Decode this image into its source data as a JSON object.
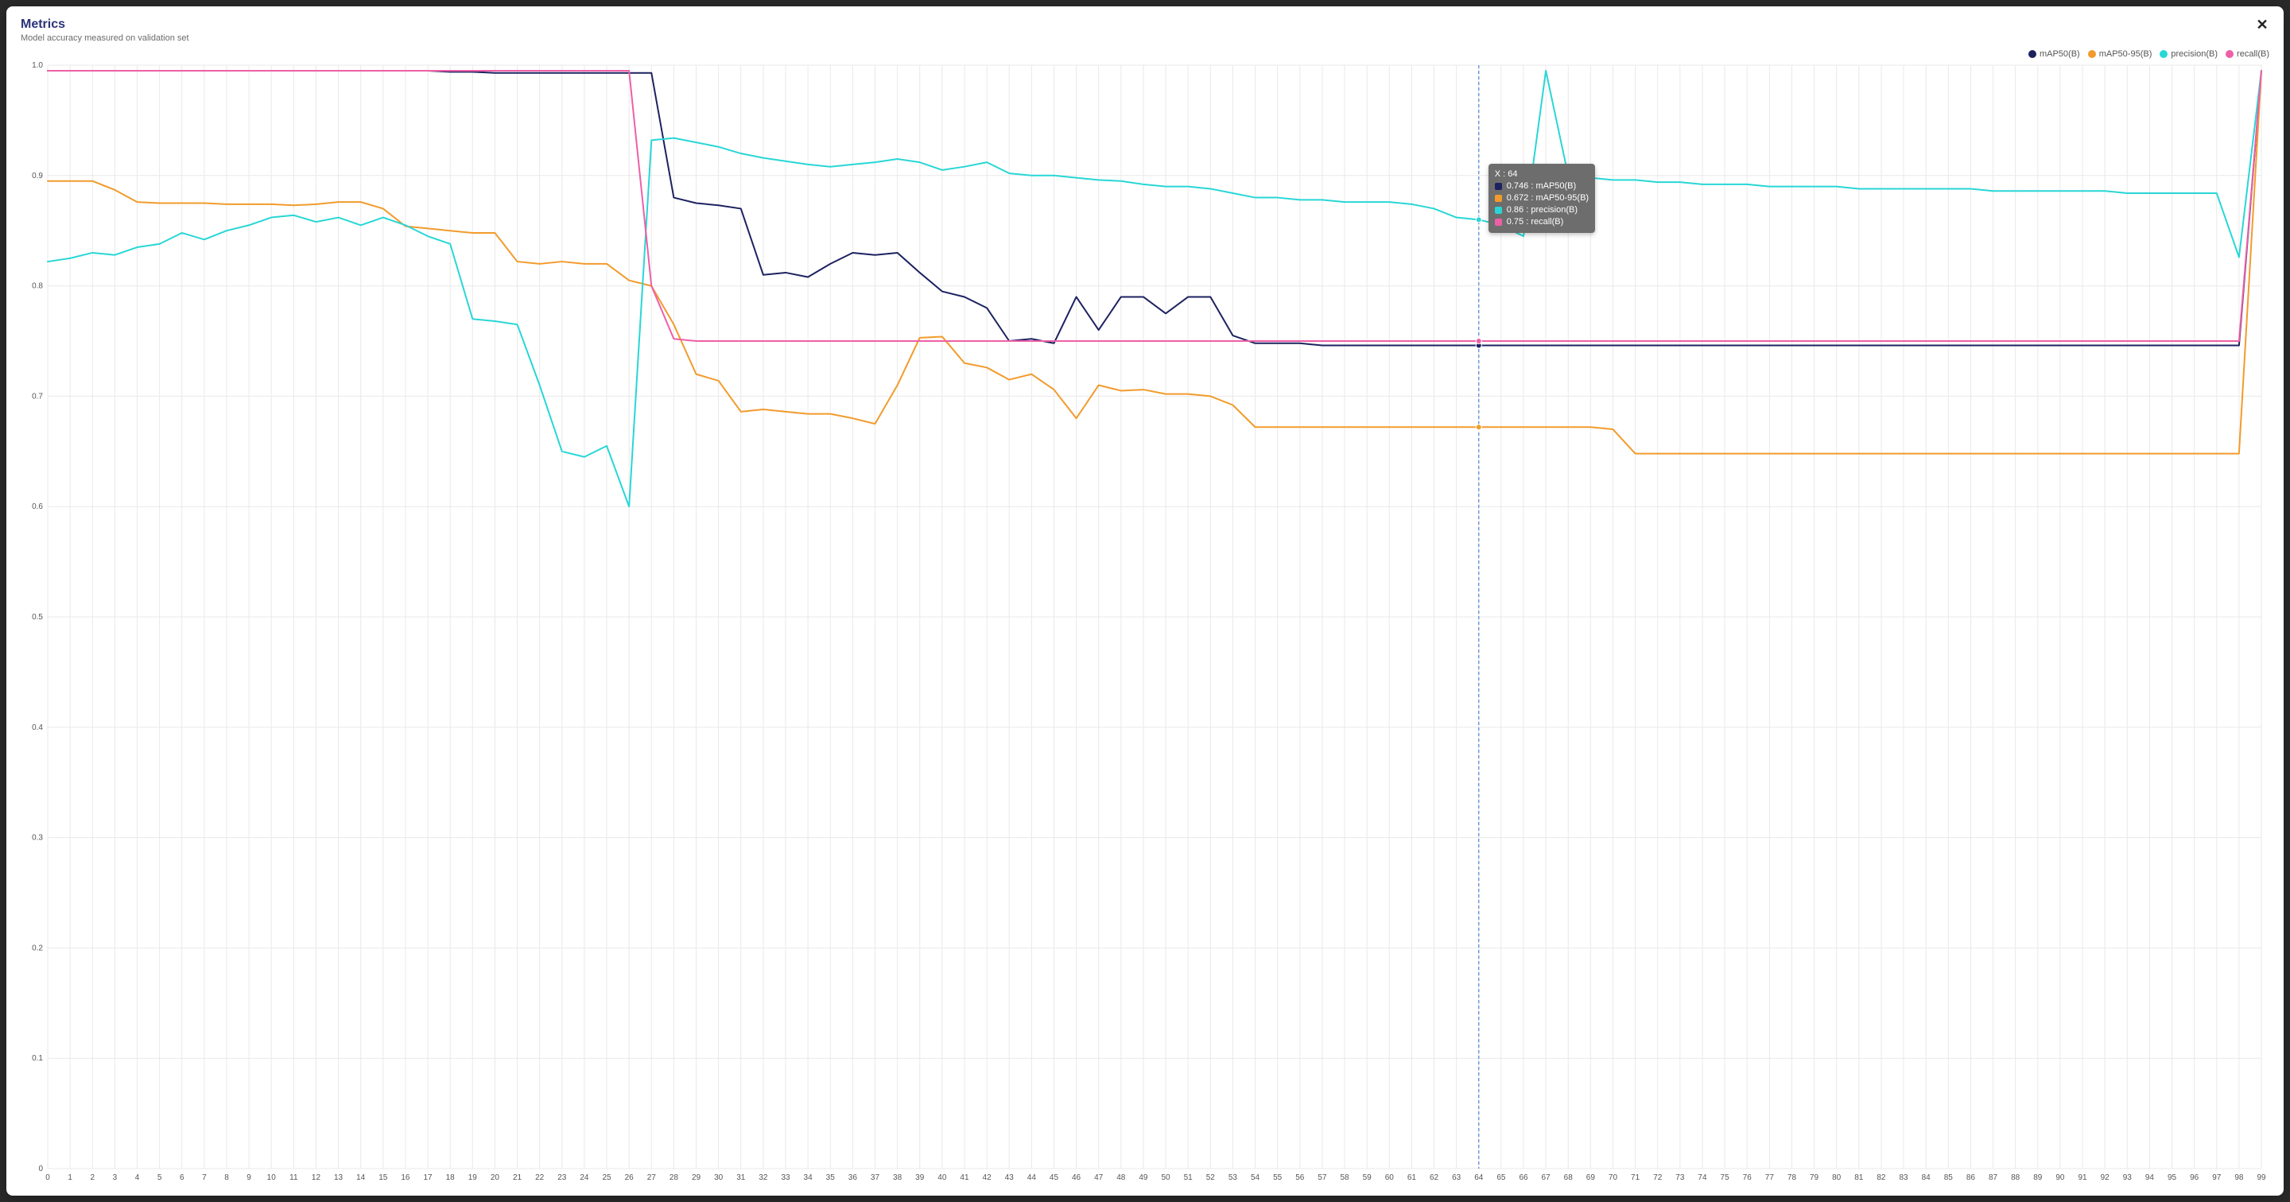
{
  "header": {
    "title": "Metrics",
    "subtitle": "Model accuracy measured on validation set",
    "close_label": "✕"
  },
  "chart": {
    "type": "line",
    "background_color": "#ffffff",
    "grid_color": "#e9e9e9",
    "axis_font_size": 10,
    "axis_text_color": "#555555",
    "x": {
      "min": 0,
      "max": 99,
      "tick_step": 1
    },
    "y": {
      "min": 0,
      "max": 1.0,
      "tick_step": 0.1,
      "label_format": "0.0"
    },
    "line_width": 2,
    "series": [
      {
        "name": "mAP50(B)",
        "color": "#1c2260",
        "values": [
          0.995,
          0.995,
          0.995,
          0.995,
          0.995,
          0.995,
          0.995,
          0.995,
          0.995,
          0.995,
          0.995,
          0.995,
          0.995,
          0.995,
          0.995,
          0.995,
          0.995,
          0.995,
          0.994,
          0.994,
          0.993,
          0.993,
          0.993,
          0.993,
          0.993,
          0.993,
          0.993,
          0.993,
          0.88,
          0.875,
          0.873,
          0.87,
          0.81,
          0.812,
          0.808,
          0.82,
          0.83,
          0.828,
          0.83,
          0.812,
          0.795,
          0.79,
          0.78,
          0.75,
          0.752,
          0.748,
          0.79,
          0.76,
          0.79,
          0.79,
          0.775,
          0.79,
          0.79,
          0.755,
          0.748,
          0.748,
          0.748,
          0.746,
          0.746,
          0.746,
          0.746,
          0.746,
          0.746,
          0.746,
          0.746,
          0.746,
          0.746,
          0.746,
          0.746,
          0.746,
          0.746,
          0.746,
          0.746,
          0.746,
          0.746,
          0.746,
          0.746,
          0.746,
          0.746,
          0.746,
          0.746,
          0.746,
          0.746,
          0.746,
          0.746,
          0.746,
          0.746,
          0.746,
          0.746,
          0.746,
          0.746,
          0.746,
          0.746,
          0.746,
          0.746,
          0.746,
          0.746,
          0.746,
          0.746,
          0.995
        ]
      },
      {
        "name": "mAP50-95(B)",
        "color": "#f29b2c",
        "values": [
          0.895,
          0.895,
          0.895,
          0.887,
          0.876,
          0.875,
          0.875,
          0.875,
          0.874,
          0.874,
          0.874,
          0.873,
          0.874,
          0.876,
          0.876,
          0.87,
          0.854,
          0.852,
          0.85,
          0.848,
          0.848,
          0.822,
          0.82,
          0.822,
          0.82,
          0.82,
          0.805,
          0.8,
          0.765,
          0.72,
          0.714,
          0.686,
          0.688,
          0.686,
          0.684,
          0.684,
          0.68,
          0.675,
          0.71,
          0.753,
          0.754,
          0.73,
          0.726,
          0.715,
          0.72,
          0.706,
          0.68,
          0.71,
          0.705,
          0.706,
          0.702,
          0.702,
          0.7,
          0.692,
          0.672,
          0.672,
          0.672,
          0.672,
          0.672,
          0.672,
          0.672,
          0.672,
          0.672,
          0.672,
          0.672,
          0.672,
          0.672,
          0.672,
          0.672,
          0.672,
          0.67,
          0.648,
          0.648,
          0.648,
          0.648,
          0.648,
          0.648,
          0.648,
          0.648,
          0.648,
          0.648,
          0.648,
          0.648,
          0.648,
          0.648,
          0.648,
          0.648,
          0.648,
          0.648,
          0.648,
          0.648,
          0.648,
          0.648,
          0.648,
          0.648,
          0.648,
          0.648,
          0.648,
          0.648,
          0.995
        ]
      },
      {
        "name": "precision(B)",
        "color": "#29d6d6",
        "values": [
          0.822,
          0.825,
          0.83,
          0.828,
          0.835,
          0.838,
          0.848,
          0.842,
          0.85,
          0.855,
          0.862,
          0.864,
          0.858,
          0.862,
          0.855,
          0.862,
          0.855,
          0.845,
          0.838,
          0.77,
          0.768,
          0.765,
          0.71,
          0.65,
          0.645,
          0.655,
          0.6,
          0.932,
          0.934,
          0.93,
          0.926,
          0.92,
          0.916,
          0.913,
          0.91,
          0.908,
          0.91,
          0.912,
          0.915,
          0.912,
          0.905,
          0.908,
          0.912,
          0.902,
          0.9,
          0.9,
          0.898,
          0.896,
          0.895,
          0.892,
          0.89,
          0.89,
          0.888,
          0.884,
          0.88,
          0.88,
          0.878,
          0.878,
          0.876,
          0.876,
          0.876,
          0.874,
          0.87,
          0.862,
          0.86,
          0.855,
          0.845,
          0.995,
          0.9,
          0.898,
          0.896,
          0.896,
          0.894,
          0.894,
          0.892,
          0.892,
          0.892,
          0.89,
          0.89,
          0.89,
          0.89,
          0.888,
          0.888,
          0.888,
          0.888,
          0.888,
          0.888,
          0.886,
          0.886,
          0.886,
          0.886,
          0.886,
          0.886,
          0.884,
          0.884,
          0.884,
          0.884,
          0.884,
          0.826,
          0.995
        ]
      },
      {
        "name": "recall(B)",
        "color": "#ee5fa7",
        "values": [
          0.995,
          0.995,
          0.995,
          0.995,
          0.995,
          0.995,
          0.995,
          0.995,
          0.995,
          0.995,
          0.995,
          0.995,
          0.995,
          0.995,
          0.995,
          0.995,
          0.995,
          0.995,
          0.995,
          0.995,
          0.995,
          0.995,
          0.995,
          0.995,
          0.995,
          0.995,
          0.995,
          0.8,
          0.752,
          0.75,
          0.75,
          0.75,
          0.75,
          0.75,
          0.75,
          0.75,
          0.75,
          0.75,
          0.75,
          0.75,
          0.75,
          0.75,
          0.75,
          0.75,
          0.75,
          0.75,
          0.75,
          0.75,
          0.75,
          0.75,
          0.75,
          0.75,
          0.75,
          0.75,
          0.75,
          0.75,
          0.75,
          0.75,
          0.75,
          0.75,
          0.75,
          0.75,
          0.75,
          0.75,
          0.75,
          0.75,
          0.75,
          0.75,
          0.75,
          0.75,
          0.75,
          0.75,
          0.75,
          0.75,
          0.75,
          0.75,
          0.75,
          0.75,
          0.75,
          0.75,
          0.75,
          0.75,
          0.75,
          0.75,
          0.75,
          0.75,
          0.75,
          0.75,
          0.75,
          0.75,
          0.75,
          0.75,
          0.75,
          0.75,
          0.75,
          0.75,
          0.75,
          0.75,
          0.75,
          0.995
        ]
      }
    ],
    "crosshair": {
      "x": 64,
      "color": "#5a8fd6"
    },
    "hover_markers": {
      "radius": 3.5
    },
    "tooltip": {
      "background": "#6d6d6d",
      "text_color": "#ffffff",
      "title_prefix": "X : ",
      "x_value": 64,
      "rows": [
        {
          "color": "#1c2260",
          "value": "0.746",
          "label": "mAP50(B)"
        },
        {
          "color": "#f29b2c",
          "value": "0.672",
          "label": "mAP50-95(B)"
        },
        {
          "color": "#29d6d6",
          "value": "0.86",
          "label": "precision(B)"
        },
        {
          "color": "#ee5fa7",
          "value": "0.75",
          "label": "recall(B)"
        }
      ]
    }
  }
}
